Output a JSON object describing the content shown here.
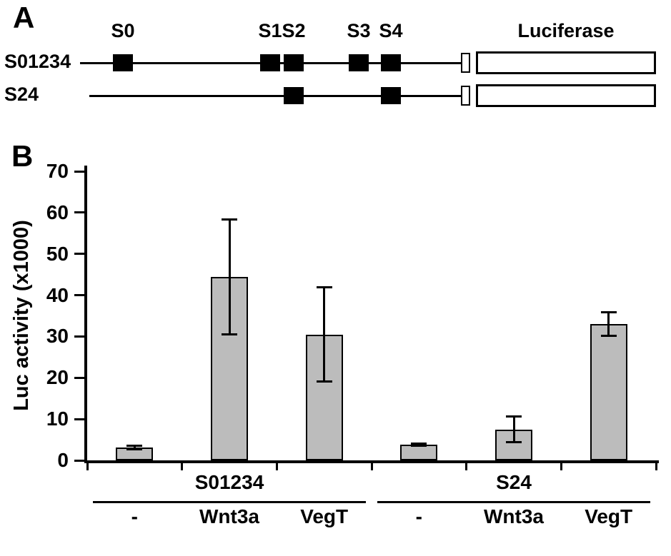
{
  "figure": {
    "panel_a": {
      "label": "A",
      "luciferase_label": "Luciferase",
      "constructs": [
        {
          "name": "S01234",
          "sites": [
            "S0",
            "S1",
            "S2",
            "S3",
            "S4"
          ],
          "show_site_labels": true
        },
        {
          "name": "S24",
          "sites": [
            "S2",
            "S4"
          ],
          "show_site_labels": false
        }
      ]
    },
    "panel_b": {
      "label": "B"
    }
  },
  "chart_data": {
    "type": "bar",
    "title": "",
    "xlabel": "",
    "ylabel": "Luc activity (x1000)",
    "ylim": [
      0,
      70
    ],
    "yticks": [
      0,
      10,
      20,
      30,
      40,
      50,
      60,
      70
    ],
    "grid": false,
    "legend": null,
    "bar_color": "#bcbcbc",
    "bar_border_color": "#000000",
    "groups": [
      {
        "label": "S01234",
        "conditions": [
          "-",
          "Wnt3a",
          "VegT"
        ],
        "values": [
          3.1,
          44.5,
          30.5
        ],
        "errors": [
          0.5,
          14.0,
          11.5
        ]
      },
      {
        "label": "S24",
        "conditions": [
          "-",
          "Wnt3a",
          "VegT"
        ],
        "values": [
          3.8,
          7.5,
          33.0
        ],
        "errors": [
          0.4,
          3.2,
          3.0
        ]
      }
    ]
  }
}
